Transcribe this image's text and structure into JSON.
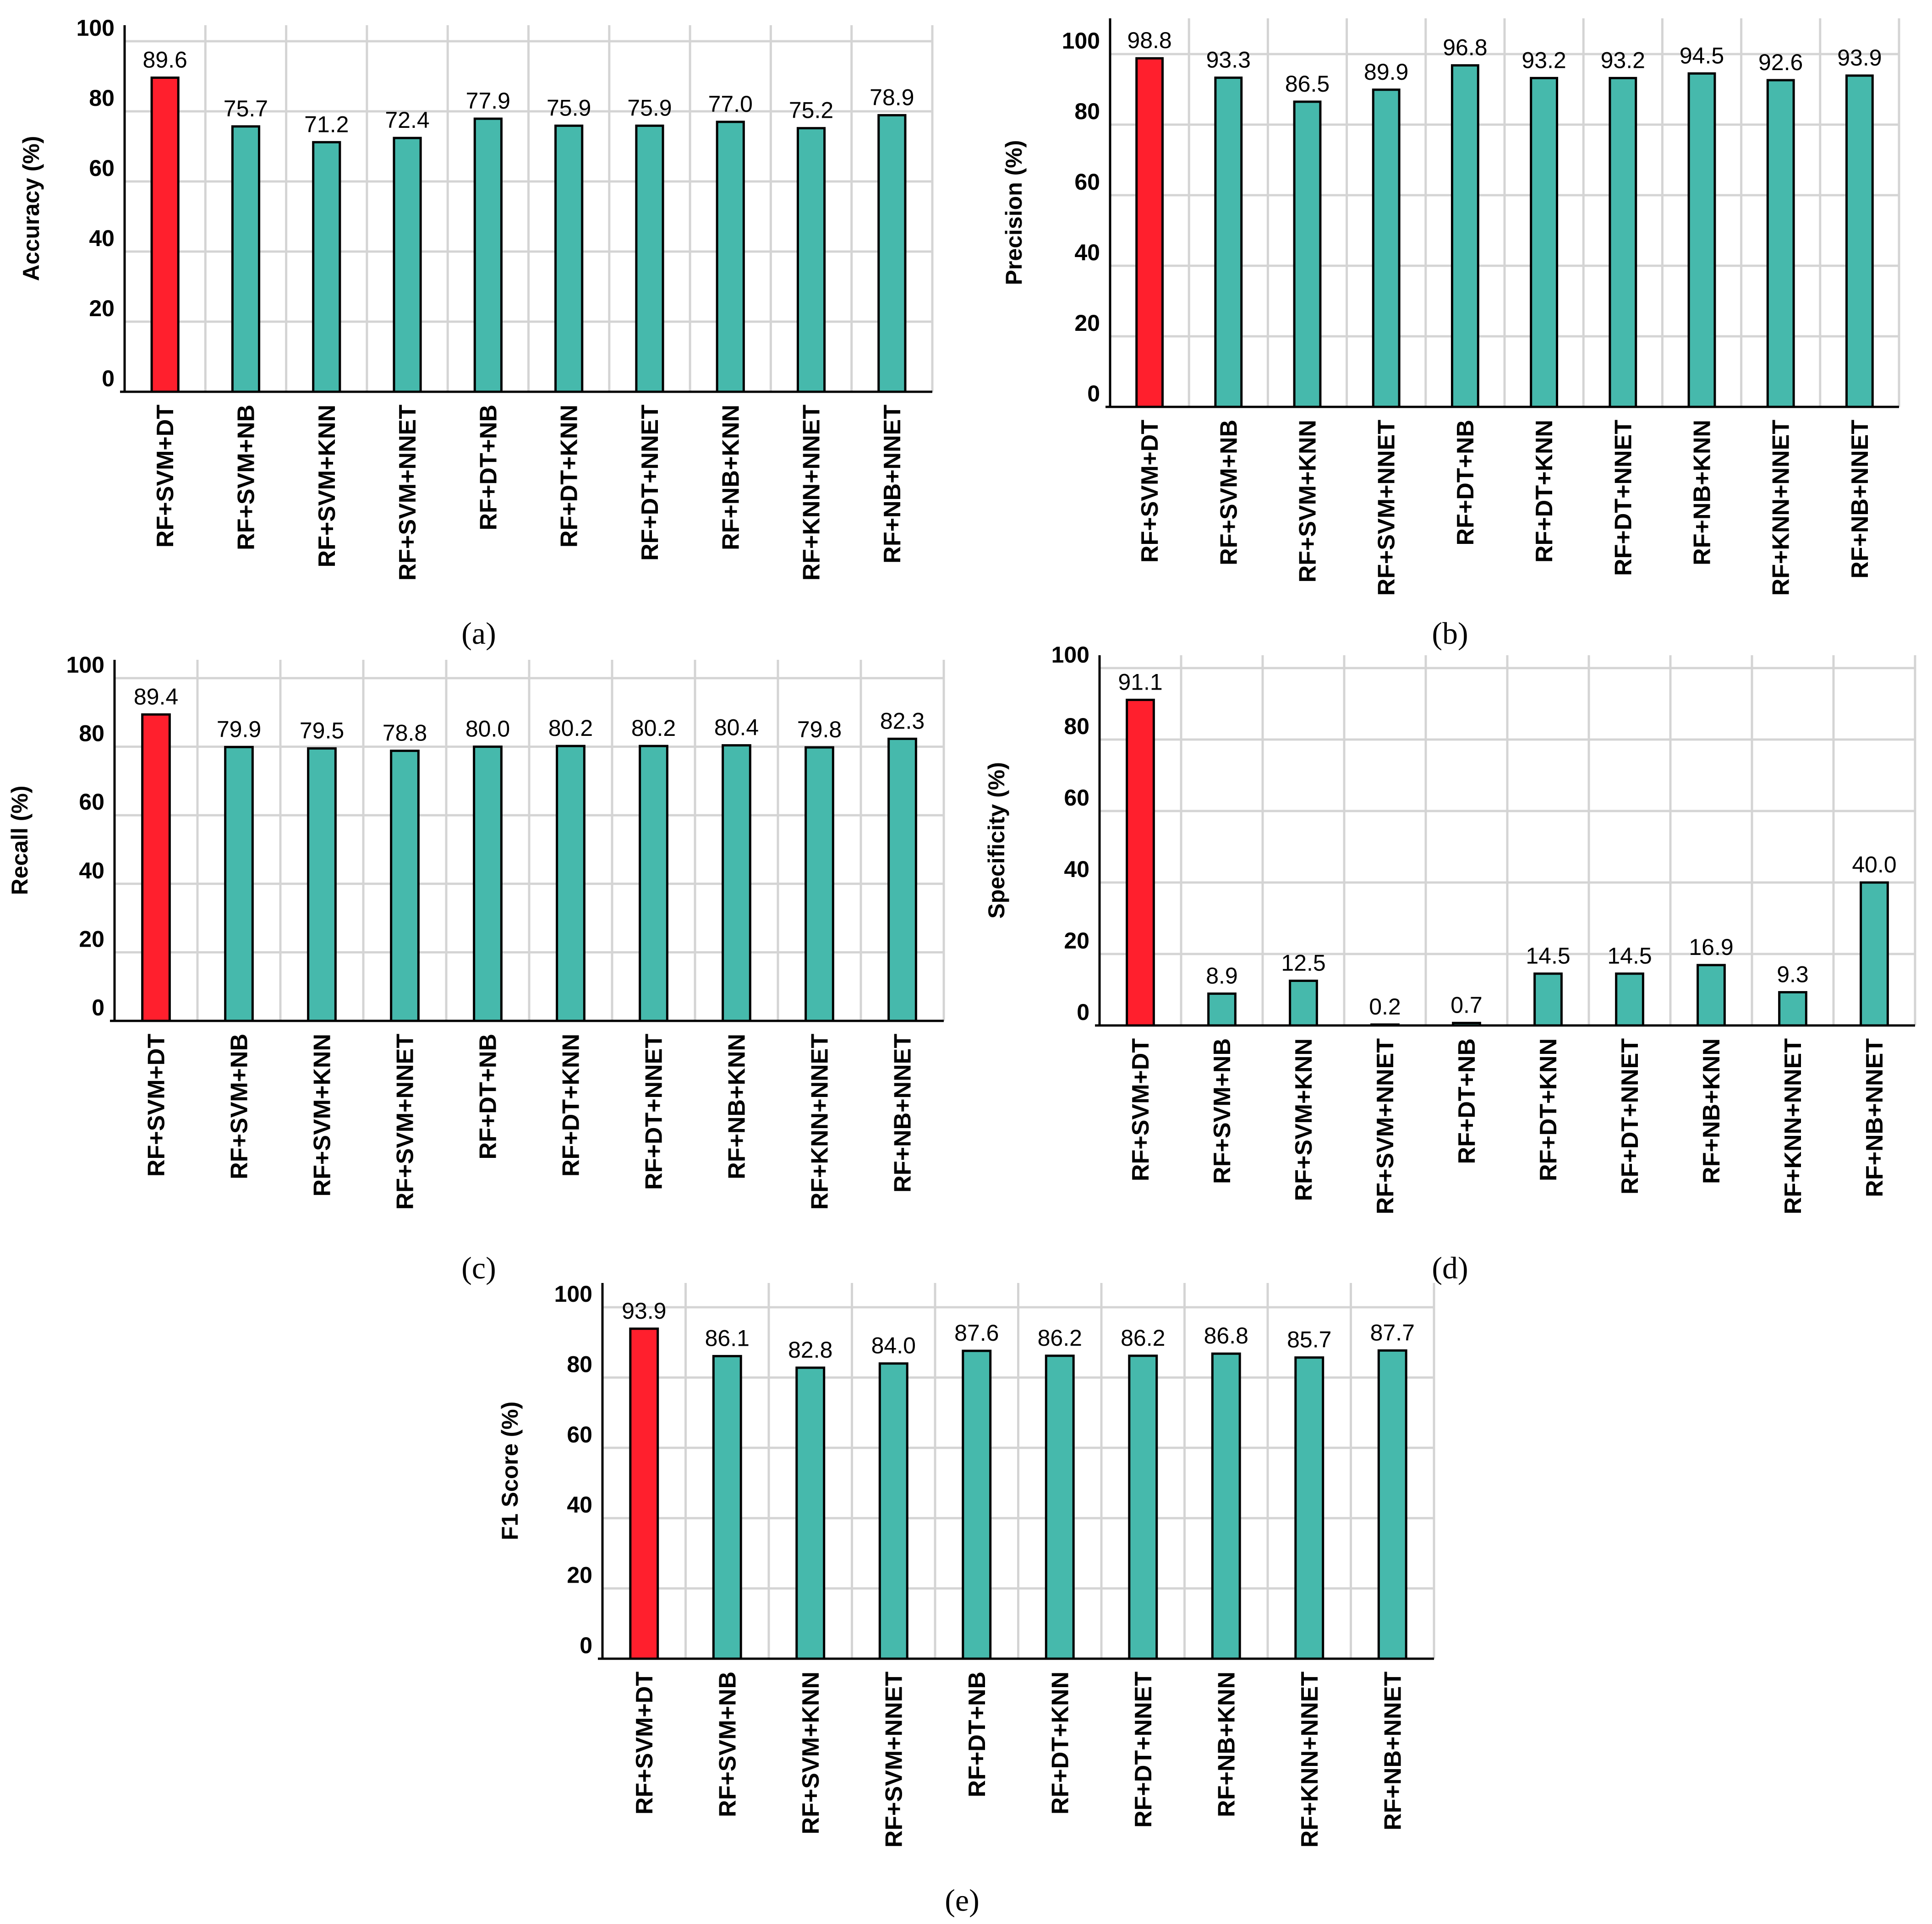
{
  "colors": {
    "highlight": "#ff1f2d",
    "bar": "#47b8ac",
    "grid": "#d4d4d4",
    "axis": "#000000"
  },
  "chart_data": [
    {
      "id": "a",
      "panel_label": "(a)",
      "type": "bar",
      "ylabel": "Accuracy (%)",
      "ylim": [
        0,
        100
      ],
      "yticks": [
        "0",
        "20",
        "40",
        "60",
        "80",
        "100"
      ],
      "grid": true,
      "categories": [
        "RF+SVM+DT",
        "RF+SVM+NB",
        "RF+SVM+KNN",
        "RF+SVM+NNET",
        "RF+DT+NB",
        "RF+DT+KNN",
        "RF+DT+NNET",
        "RF+NB+KNN",
        "RF+KNN+NNET",
        "RF+NB+NNET"
      ],
      "values": [
        89.6,
        75.7,
        71.2,
        72.4,
        77.9,
        75.9,
        75.9,
        77.0,
        75.2,
        78.9
      ],
      "value_labels": [
        "89.6",
        "75.7",
        "71.2",
        "72.4",
        "77.9",
        "75.9",
        "75.9",
        "77.0",
        "75.2",
        "78.9"
      ],
      "highlight_index": 0
    },
    {
      "id": "b",
      "panel_label": "(b)",
      "type": "bar",
      "ylabel": "Precision (%)",
      "ylim": [
        0,
        100
      ],
      "yticks": [
        "0",
        "20",
        "40",
        "60",
        "80",
        "100"
      ],
      "grid": true,
      "categories": [
        "RF+SVM+DT",
        "RF+SVM+NB",
        "RF+SVM+KNN",
        "RF+SVM+NNET",
        "RF+DT+NB",
        "RF+DT+KNN",
        "RF+DT+NNET",
        "RF+NB+KNN",
        "RF+KNN+NNET",
        "RF+NB+NNET"
      ],
      "values": [
        98.8,
        93.3,
        86.5,
        89.9,
        96.8,
        93.2,
        93.2,
        94.5,
        92.6,
        93.9
      ],
      "value_labels": [
        "98.8",
        "93.3",
        "86.5",
        "89.9",
        "96.8",
        "93.2",
        "93.2",
        "94.5",
        "92.6",
        "93.9"
      ],
      "highlight_index": 0
    },
    {
      "id": "c",
      "panel_label": "(c)",
      "type": "bar",
      "ylabel": "Recall (%)",
      "ylim": [
        0,
        100
      ],
      "yticks": [
        "0",
        "20",
        "40",
        "60",
        "80",
        "100"
      ],
      "grid": true,
      "categories": [
        "RF+SVM+DT",
        "RF+SVM+NB",
        "RF+SVM+KNN",
        "RF+SVM+NNET",
        "RF+DT+NB",
        "RF+DT+KNN",
        "RF+DT+NNET",
        "RF+NB+KNN",
        "RF+KNN+NNET",
        "RF+NB+NNET"
      ],
      "values": [
        89.4,
        79.9,
        79.5,
        78.8,
        80.0,
        80.2,
        80.2,
        80.4,
        79.8,
        82.3
      ],
      "value_labels": [
        "89.4",
        "79.9",
        "79.5",
        "78.8",
        "80.0",
        "80.2",
        "80.2",
        "80.4",
        "79.8",
        "82.3"
      ],
      "highlight_index": 0
    },
    {
      "id": "d",
      "panel_label": "(d)",
      "type": "bar",
      "ylabel": "Specificity (%)",
      "ylim": [
        0,
        100
      ],
      "yticks": [
        "0",
        "20",
        "40",
        "60",
        "80",
        "100"
      ],
      "grid": true,
      "categories": [
        "RF+SVM+DT",
        "RF+SVM+NB",
        "RF+SVM+KNN",
        "RF+SVM+NNET",
        "RF+DT+NB",
        "RF+DT+KNN",
        "RF+DT+NNET",
        "RF+NB+KNN",
        "RF+KNN+NNET",
        "RF+NB+NNET"
      ],
      "values": [
        91.1,
        8.9,
        12.5,
        0.2,
        0.7,
        14.5,
        14.5,
        16.9,
        9.3,
        40.0
      ],
      "value_labels": [
        "91.1",
        "8.9",
        "12.5",
        "0.2",
        "0.7",
        "14.5",
        "14.5",
        "16.9",
        "9.3",
        "40.0"
      ],
      "highlight_index": 0
    },
    {
      "id": "e",
      "panel_label": "(e)",
      "type": "bar",
      "ylabel": "F1 Score (%)",
      "ylim": [
        0,
        100
      ],
      "yticks": [
        "0",
        "20",
        "40",
        "60",
        "80",
        "100"
      ],
      "grid": true,
      "categories": [
        "RF+SVM+DT",
        "RF+SVM+NB",
        "RF+SVM+KNN",
        "RF+SVM+NNET",
        "RF+DT+NB",
        "RF+DT+KNN",
        "RF+DT+NNET",
        "RF+NB+KNN",
        "RF+KNN+NNET",
        "RF+NB+NNET"
      ],
      "values": [
        93.9,
        86.1,
        82.8,
        84.0,
        87.6,
        86.2,
        86.2,
        86.8,
        85.7,
        87.7
      ],
      "value_labels": [
        "93.9",
        "86.1",
        "82.8",
        "84.0",
        "87.6",
        "86.2",
        "86.2",
        "86.8",
        "85.7",
        "87.7"
      ],
      "highlight_index": 0
    }
  ]
}
